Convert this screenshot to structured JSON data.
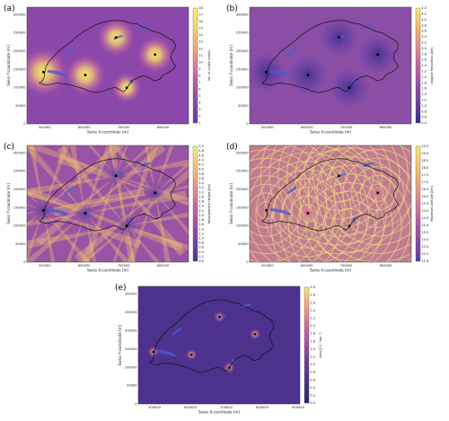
{
  "chart_data": [
    {
      "type": "heatmap",
      "panel_label": "(a)",
      "xlabel": "Swiss X-coordinate [m]",
      "ylabel": "Swiss Y-coordinate [m]",
      "x_ticks": [
        "500000",
        "600000",
        "700000",
        "800000"
      ],
      "y_ticks": [
        "0",
        "50000",
        "100000",
        "150000",
        "200000",
        "250000",
        "300000"
      ],
      "colorbar_label": "No. of visible radars",
      "colorbar_ticks": [
        "1",
        "2",
        "3",
        "4",
        "5",
        "6",
        "7",
        "8",
        "9",
        "10",
        "11",
        "12",
        "13",
        "14",
        "15",
        "16",
        "17",
        "18"
      ],
      "colormap": [
        "#5b3ea4",
        "#8a45a8",
        "#b55aa6",
        "#db7c98",
        "#f1a77f",
        "#f8d36a",
        "#f6f06e"
      ],
      "radars": [
        [
          497000,
          142000
        ],
        [
          603000,
          134000
        ],
        [
          681000,
          237000
        ],
        [
          708000,
          99000
        ],
        [
          780000,
          190000
        ]
      ]
    },
    {
      "type": "heatmap",
      "panel_label": "(b)",
      "xlabel": "Swiss X-coordinate [m]",
      "ylabel": "Swiss Y-coordinate [m]",
      "x_ticks": [
        "500000",
        "600000",
        "700000",
        "800000"
      ],
      "y_ticks": [
        "0",
        "50000",
        "100000",
        "150000",
        "200000",
        "250000",
        "300000"
      ],
      "colorbar_label": "Angular Resolution [km]",
      "colorbar_ticks": [
        "0.4",
        "0.6",
        "0.8",
        "1.0",
        "1.2",
        "1.4",
        "1.6",
        "1.8",
        "2.0",
        "2.2",
        "2.4",
        "2.6",
        "2.8",
        "3.0",
        "3.2",
        "3.4",
        "3.6",
        "3.8",
        "4.0",
        "4.2",
        "4.4"
      ],
      "colormap": [
        "#3b2a8c",
        "#6a3fa6",
        "#9a4eaa",
        "#c465a0",
        "#e58b8b",
        "#f5b672",
        "#f4ec74"
      ],
      "radars": [
        [
          497000,
          142000
        ],
        [
          603000,
          134000
        ],
        [
          681000,
          237000
        ],
        [
          708000,
          99000
        ],
        [
          780000,
          190000
        ]
      ]
    },
    {
      "type": "heatmap",
      "panel_label": "(c)",
      "xlabel": "Swiss X-coordinate [m]",
      "ylabel": "Swiss Y-coordinate [m]",
      "x_ticks": [
        "500000",
        "600000",
        "700000",
        "800000"
      ],
      "y_ticks": [
        "0",
        "50000",
        "100000",
        "150000",
        "200000",
        "250000",
        "300000"
      ],
      "colorbar_label": "Measurement Height [km]",
      "colorbar_ticks": [
        "0.0",
        "0.2",
        "0.4",
        "0.6",
        "0.8",
        "1.0",
        "1.2",
        "1.4",
        "1.6",
        "1.8",
        "2.0",
        "2.2",
        "2.4",
        "2.6",
        "2.8",
        "3.0",
        "3.2",
        "3.4",
        "3.6",
        "3.8",
        "4.0",
        "4.2",
        "4.4",
        "4.6",
        "4.8",
        "5.0"
      ],
      "colormap": [
        "#4a3596",
        "#7a43a8",
        "#a751a8",
        "#cf6c9c",
        "#ec9587",
        "#f6c56e",
        "#f4ef78"
      ],
      "radars": [
        [
          497000,
          142000
        ],
        [
          603000,
          134000
        ],
        [
          681000,
          237000
        ],
        [
          708000,
          99000
        ],
        [
          780000,
          190000
        ]
      ]
    },
    {
      "type": "heatmap",
      "panel_label": "(d)",
      "xlabel": "Swiss X-coordinate [m]",
      "ylabel": "Swiss Y-coordinate [m]",
      "x_ticks": [
        "500000",
        "600000",
        "700000",
        "800000"
      ],
      "y_ticks": [
        "0",
        "50000",
        "100000",
        "150000",
        "200000",
        "250000",
        "300000"
      ],
      "colorbar_label": "Maximum Altitude [km]",
      "colorbar_ticks": [
        "11.6",
        "12.0",
        "12.5",
        "13.0",
        "13.5",
        "14.0",
        "14.5",
        "15.0",
        "15.5",
        "16.0",
        "16.5",
        "17.0",
        "17.5",
        "18.0",
        "18.5",
        "19.0",
        "19.5"
      ],
      "colormap": [
        "#5a3da2",
        "#8a47a8",
        "#b55aa4",
        "#d97e92",
        "#eda47c",
        "#f4c86c",
        "#f5e87a"
      ],
      "radars": [
        [
          497000,
          142000
        ],
        [
          603000,
          134000
        ],
        [
          681000,
          237000
        ],
        [
          708000,
          99000
        ],
        [
          780000,
          190000
        ]
      ]
    },
    {
      "type": "heatmap",
      "panel_label": "(e)",
      "xlabel": "Swiss X-coordinate [m]",
      "ylabel": "Swiss Y-coordinate [m]",
      "x_ticks": [
        "500000",
        "600000",
        "700000",
        "800000",
        "900000"
      ],
      "y_ticks": [
        "0",
        "50000",
        "100000",
        "150000",
        "200000",
        "250000",
        "300000"
      ],
      "colorbar_label": "Area [10⁻³ km⁻²]",
      "colorbar_ticks": [
        "0.0",
        "0.2",
        "0.4",
        "0.6",
        "0.8",
        "1.0",
        "1.2",
        "1.4",
        "1.6",
        "1.8",
        "2.0",
        "2.2",
        "2.4",
        "2.6",
        "2.8",
        "3.0"
      ],
      "colormap": [
        "#2e2470",
        "#4a2f8c",
        "#6a3b9c",
        "#9b4fa4",
        "#cc6c98",
        "#eda07c",
        "#f6e47a"
      ],
      "radars": [
        [
          497000,
          142000
        ],
        [
          603000,
          134000
        ],
        [
          681000,
          237000
        ],
        [
          708000,
          99000
        ],
        [
          780000,
          190000
        ]
      ]
    }
  ]
}
